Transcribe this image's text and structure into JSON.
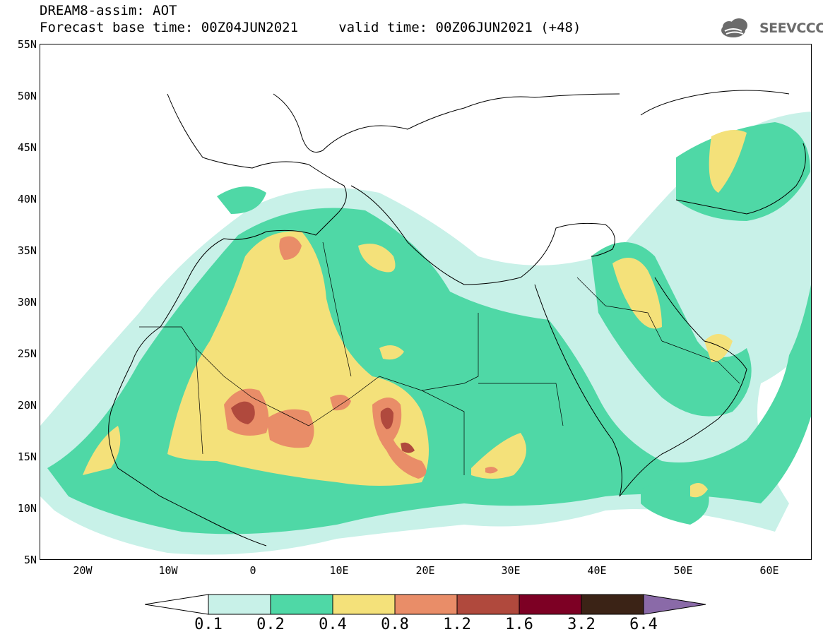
{
  "header": {
    "title_line1": "DREAM8-assim: AOT",
    "title_line2": "Forecast base time: 00Z04JUN2021     valid time: 00Z06JUN2021 (+48)",
    "logo_text": "SEEVCCC"
  },
  "map": {
    "lon_range": [
      -25,
      65
    ],
    "lat_range": [
      5,
      55
    ],
    "lat_labels": [
      "55N",
      "50N",
      "45N",
      "40N",
      "35N",
      "30N",
      "25N",
      "20N",
      "15N",
      "10N",
      "5N"
    ],
    "lon_labels": [
      "20W",
      "10W",
      "0",
      "10E",
      "20E",
      "30E",
      "40E",
      "50E",
      "60E"
    ]
  },
  "colorbar": {
    "labels": [
      "0.1",
      "0.2",
      "0.4",
      "0.8",
      "1.2",
      "1.6",
      "3.2",
      "6.4"
    ],
    "colors": [
      "#c8f1e8",
      "#4fd8a6",
      "#f4e17a",
      "#e98d68",
      "#b0493d",
      "#7d0024",
      "#3b2316",
      "#8a6aa8"
    ]
  }
}
